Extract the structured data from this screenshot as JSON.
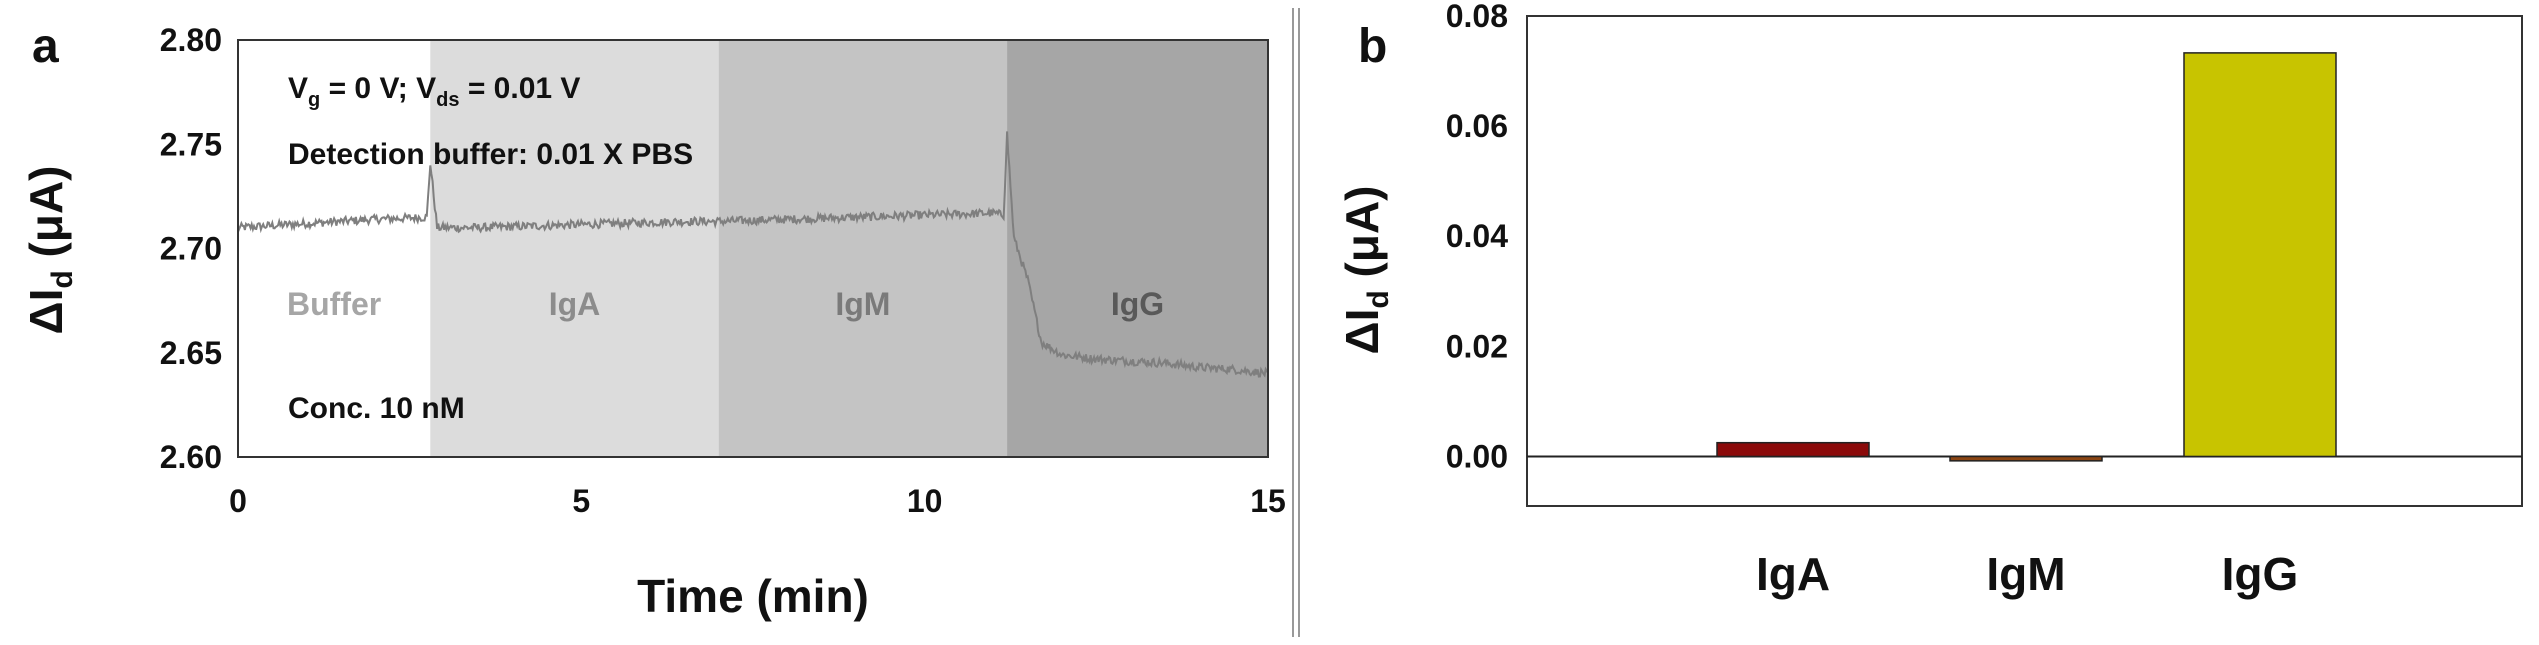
{
  "panels": [
    {
      "letter": "a",
      "chart_data": {
        "type": "line",
        "xlabel": "Time (min)",
        "ylabel_main": "ΔI",
        "ylabel_sub": "d",
        "ylabel_unit": " (μA)",
        "xlim": [
          0,
          15
        ],
        "ylim": [
          2.6,
          2.8
        ],
        "xticks": [
          "0",
          "5",
          "10",
          "15"
        ],
        "yticks": [
          "2.60",
          "2.65",
          "2.70",
          "2.75",
          "2.80"
        ],
        "regions": [
          {
            "label": "Buffer",
            "x_start": 0,
            "x_end": 2.8,
            "color": "#ffffff",
            "label_color": "#a6a6a6"
          },
          {
            "label": "IgA",
            "x_start": 2.8,
            "x_end": 7.0,
            "color": "#dcdcdc",
            "label_color": "#8c8c8c"
          },
          {
            "label": "IgM",
            "x_start": 7.0,
            "x_end": 11.2,
            "color": "#c4c4c4",
            "label_color": "#7a7a7a"
          },
          {
            "label": "IgG",
            "x_start": 11.2,
            "x_end": 15,
            "color": "#a6a6a6",
            "label_color": "#595959"
          }
        ],
        "series": [
          {
            "color": "#7f7f7f",
            "x": [
              0,
              1,
              2,
              2.75,
              2.8,
              2.9,
              3.5,
              4.5,
              5.5,
              6.5,
              7.0,
              8.0,
              9.0,
              10.0,
              11.0,
              11.15,
              11.2,
              11.3,
              11.5,
              11.7,
              12.0,
              12.5,
              13.0,
              13.5,
              14.0,
              14.5,
              15.0
            ],
            "y": [
              2.71,
              2.712,
              2.714,
              2.715,
              2.741,
              2.71,
              2.71,
              2.711,
              2.712,
              2.713,
              2.713,
              2.714,
              2.715,
              2.716,
              2.717,
              2.716,
              2.755,
              2.705,
              2.685,
              2.655,
              2.649,
              2.647,
              2.646,
              2.645,
              2.643,
              2.642,
              2.64
            ]
          }
        ],
        "annotations": [
          {
            "main": "V",
            "sub": "g",
            "rest": " = 0 V; V",
            "sub2": "ds",
            "rest2": " = 0.01 V"
          },
          {
            "text": "Detection buffer: 0.01 X PBS"
          },
          {
            "text": "Conc. 10 nM"
          }
        ]
      }
    },
    {
      "letter": "b",
      "chart_data": {
        "type": "bar",
        "categories": [
          "IgA",
          "IgM",
          "IgG"
        ],
        "values": [
          0.0025,
          -0.0008,
          0.0733
        ],
        "colors": [
          "#8b0a0a",
          "#8b4513",
          "#c8c400"
        ],
        "ylabel_main": "ΔI",
        "ylabel_sub": "d",
        "ylabel_unit": " (μA)",
        "ylim": [
          -0.009,
          0.08
        ],
        "yticks": [
          "0.00",
          "0.02",
          "0.04",
          "0.06",
          "0.08"
        ],
        "ytick_values": [
          0,
          0.02,
          0.04,
          0.06,
          0.08
        ]
      }
    }
  ]
}
